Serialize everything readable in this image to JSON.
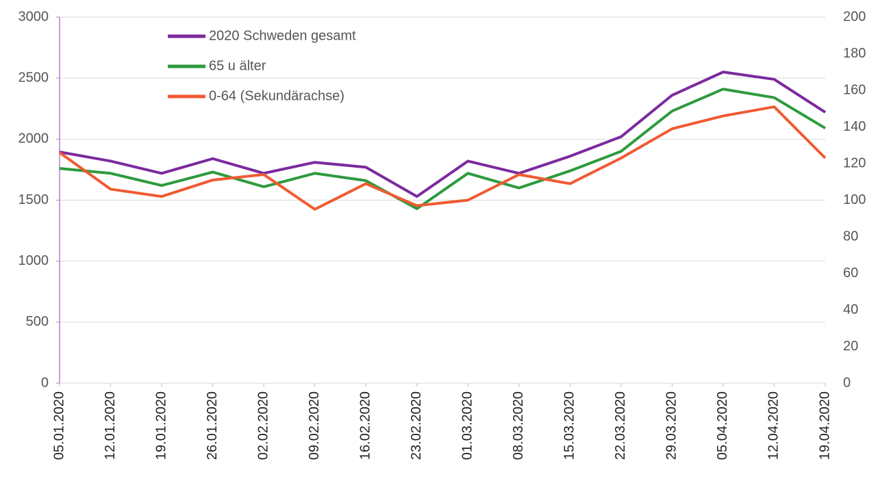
{
  "chart_data": {
    "type": "line",
    "categories": [
      "05.01.2020",
      "12.01.2020",
      "19.01.2020",
      "26.01.2020",
      "02.02.2020",
      "09.02.2020",
      "16.02.2020",
      "23.02.2020",
      "01.03.2020",
      "08.03.2020",
      "15.03.2020",
      "22.03.2020",
      "29.03.2020",
      "05.04.2020",
      "12.04.2020",
      "19.04.2020"
    ],
    "series": [
      {
        "name": "2020 Schweden gesamt",
        "color": "#7b2a9e",
        "values": [
          1895,
          1820,
          1720,
          1840,
          1720,
          1810,
          1770,
          1530,
          1820,
          1720,
          1860,
          2020,
          2360,
          2550,
          2490,
          2220
        ]
      },
      {
        "name": "65 u älter",
        "color": "#2e9a3e",
        "values": [
          1760,
          1720,
          1620,
          1730,
          1610,
          1720,
          1660,
          1430,
          1720,
          1600,
          1740,
          1900,
          2230,
          2410,
          2340,
          2090
        ]
      },
      {
        "name": "0-64 (Sekundärachse)",
        "color": "#f05a32",
        "axis": "y2",
        "values": [
          126,
          106,
          102,
          111,
          114,
          95,
          109,
          97,
          100,
          114,
          109,
          123,
          139,
          146,
          151,
          123
        ]
      }
    ],
    "ylim": [
      0,
      3000
    ],
    "yticks": [
      0,
      500,
      1000,
      1500,
      2000,
      2500,
      3000
    ],
    "y2lim": [
      0,
      200
    ],
    "y2ticks": [
      0,
      20,
      40,
      60,
      80,
      100,
      120,
      140,
      160,
      180,
      200
    ],
    "grid": true,
    "legend": "top-left"
  }
}
